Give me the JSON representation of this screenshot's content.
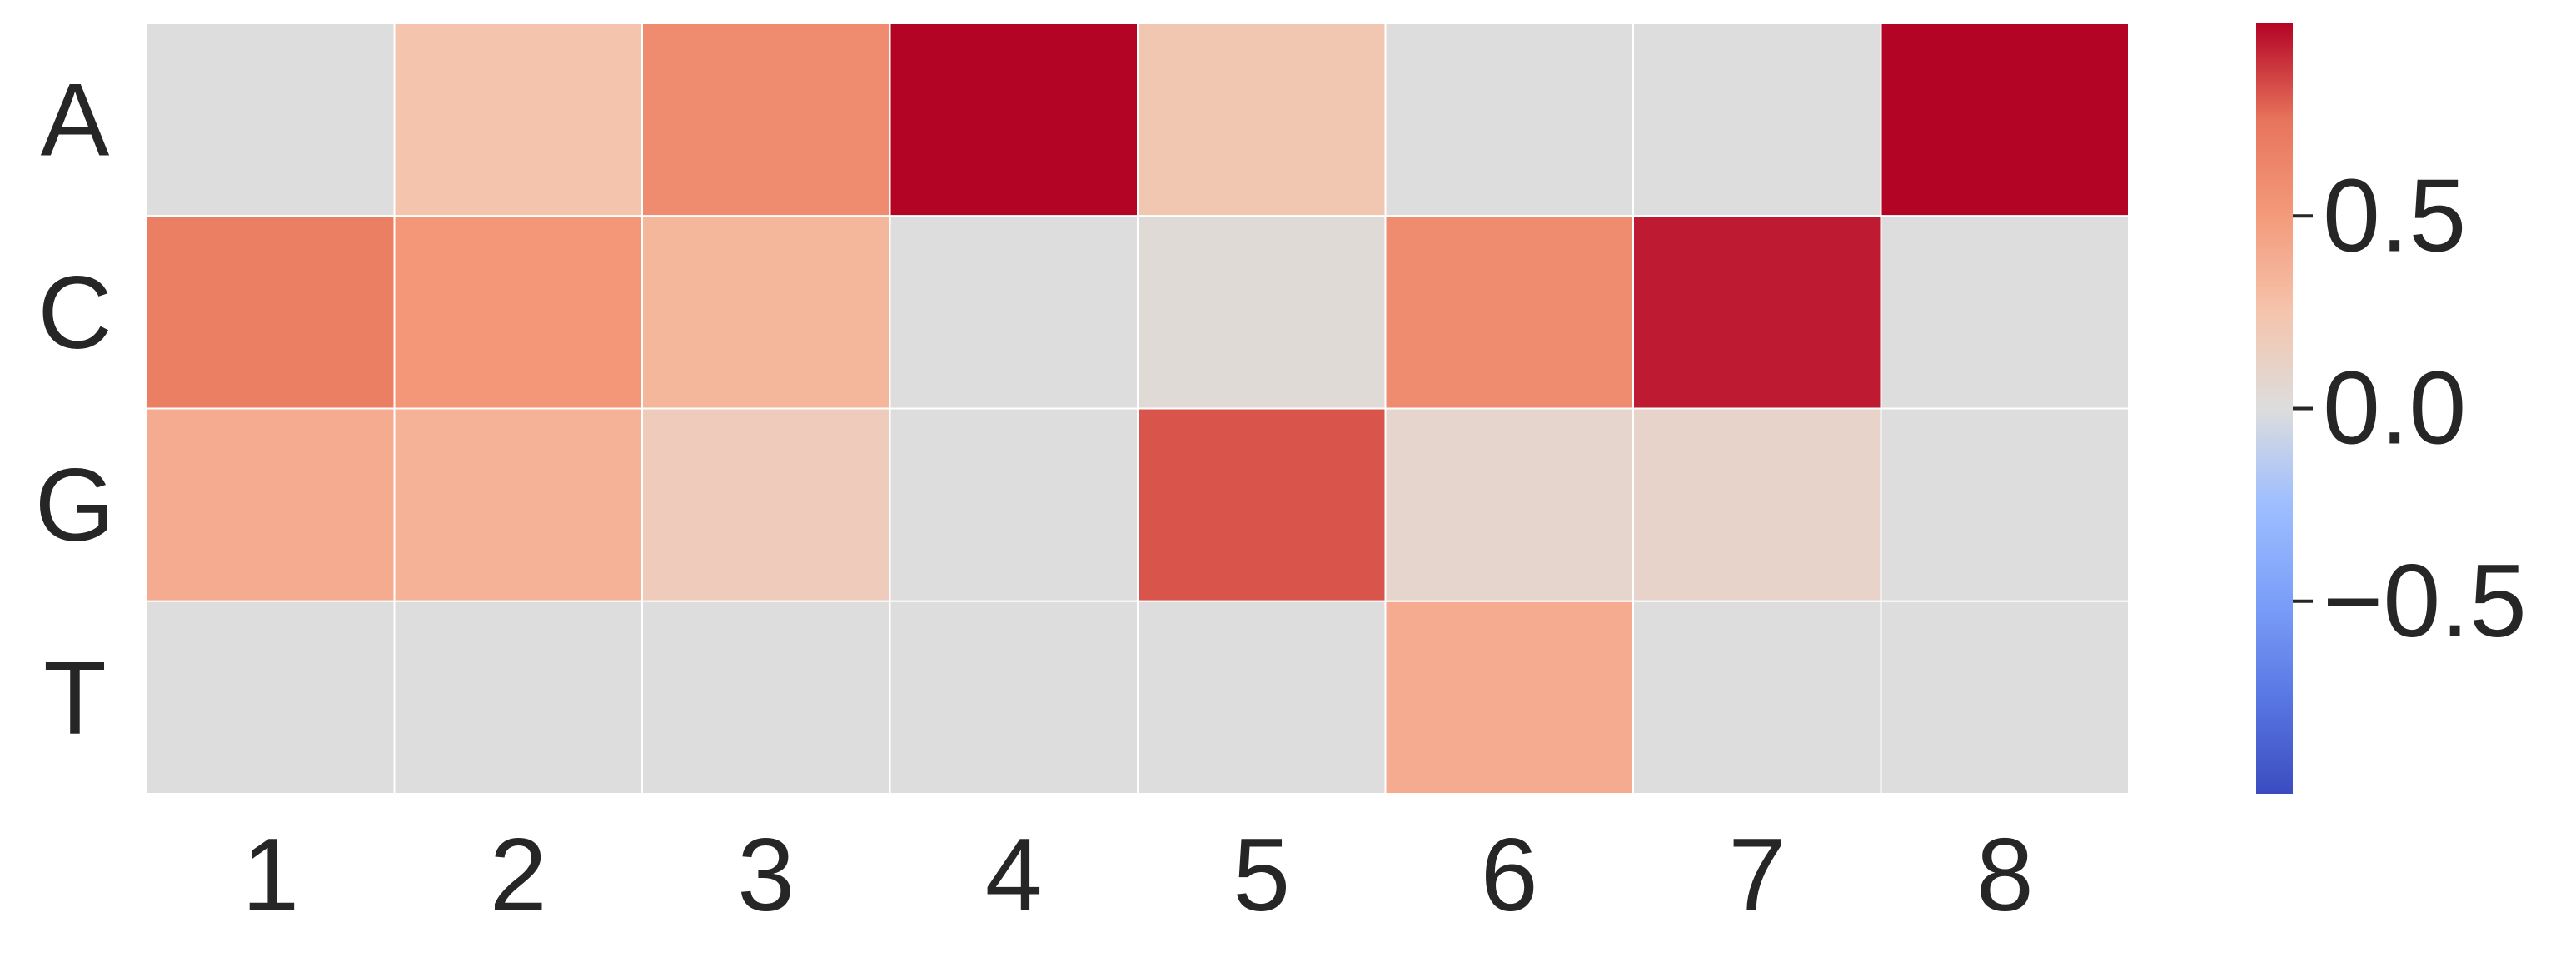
{
  "chart_data": {
    "type": "heatmap",
    "title": "",
    "xlabel": "",
    "ylabel": "",
    "x_categories": [
      "1",
      "2",
      "3",
      "4",
      "5",
      "6",
      "7",
      "8"
    ],
    "y_categories": [
      "A",
      "C",
      "G",
      "T"
    ],
    "values": [
      [
        0.0,
        0.25,
        0.6,
        1.0,
        0.22,
        0.0,
        0.0,
        1.0
      ],
      [
        0.68,
        0.52,
        0.33,
        0.0,
        0.03,
        0.6,
        0.95,
        0.0
      ],
      [
        0.4,
        0.36,
        0.18,
        0.0,
        0.82,
        0.08,
        0.1,
        0.0
      ],
      [
        0.0,
        0.0,
        0.0,
        0.0,
        0.0,
        0.4,
        0.0,
        0.0
      ]
    ],
    "colormap": "coolwarm",
    "colorbar": {
      "vmin": -1.0,
      "vmax": 1.0,
      "ticks": [
        -0.5,
        0.0,
        0.5
      ],
      "tick_labels": [
        "−0.5",
        "0.0",
        "0.5"
      ],
      "colors": [
        "#3b4cc0",
        "#b40426"
      ]
    },
    "grid": true,
    "cell_line_color": "#ffffff"
  }
}
